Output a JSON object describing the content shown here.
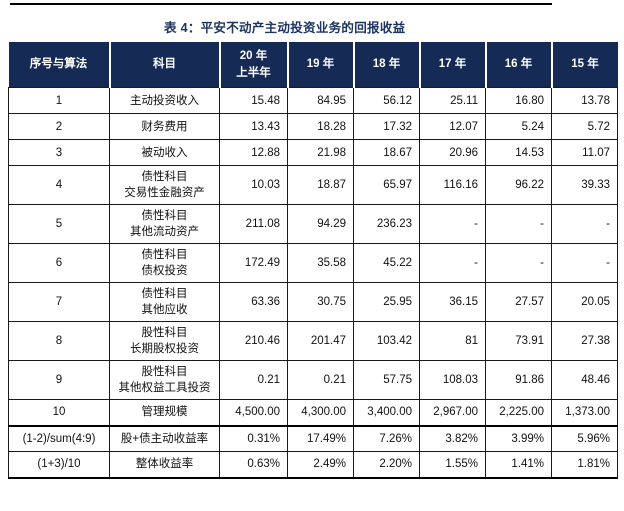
{
  "title": {
    "text": "表 4：平安不动产主动投资业务的回报收益",
    "color": "#1e3560"
  },
  "divider": {
    "color": "#000000"
  },
  "table": {
    "header_bg": "#152a54",
    "header_text_color": "#ffffff",
    "border_color": "#1a1a1a",
    "columns": [
      {
        "lines": [
          "序号与算法"
        ]
      },
      {
        "lines": [
          "科目"
        ]
      },
      {
        "lines": [
          "20 年",
          "上半年"
        ]
      },
      {
        "lines": [
          "19 年"
        ]
      },
      {
        "lines": [
          "18 年"
        ]
      },
      {
        "lines": [
          "17 年"
        ]
      },
      {
        "lines": [
          "16 年"
        ]
      },
      {
        "lines": [
          "15 年"
        ]
      }
    ],
    "rows": [
      {
        "id": "1",
        "subject_lines": [
          "主动投资收入"
        ],
        "values": [
          "15.48",
          "84.95",
          "56.12",
          "25.11",
          "16.80",
          "13.78"
        ]
      },
      {
        "id": "2",
        "subject_lines": [
          "财务费用"
        ],
        "values": [
          "13.43",
          "18.28",
          "17.32",
          "12.07",
          "5.24",
          "5.72"
        ]
      },
      {
        "id": "3",
        "subject_lines": [
          "被动收入"
        ],
        "values": [
          "12.88",
          "21.98",
          "18.67",
          "20.96",
          "14.53",
          "11.07"
        ]
      },
      {
        "id": "4",
        "subject_lines": [
          "债性科目",
          "交易性金融资产"
        ],
        "values": [
          "10.03",
          "18.87",
          "65.97",
          "116.16",
          "96.22",
          "39.33"
        ]
      },
      {
        "id": "5",
        "subject_lines": [
          "债性科目",
          "其他流动资产"
        ],
        "values": [
          "211.08",
          "94.29",
          "236.23",
          "-",
          "-",
          "-"
        ]
      },
      {
        "id": "6",
        "subject_lines": [
          "债性科目",
          "债权投资"
        ],
        "values": [
          "172.49",
          "35.58",
          "45.22",
          "-",
          "-",
          "-"
        ]
      },
      {
        "id": "7",
        "subject_lines": [
          "债性科目",
          "其他应收"
        ],
        "values": [
          "63.36",
          "30.75",
          "25.95",
          "36.15",
          "27.57",
          "20.05"
        ]
      },
      {
        "id": "8",
        "subject_lines": [
          "股性科目",
          "长期股权投资"
        ],
        "values": [
          "210.46",
          "201.47",
          "103.42",
          "81",
          "73.91",
          "27.38"
        ]
      },
      {
        "id": "9",
        "subject_lines": [
          "股性科目",
          "其他权益工具投资"
        ],
        "values": [
          "0.21",
          "0.21",
          "57.75",
          "108.03",
          "91.86",
          "48.46"
        ]
      },
      {
        "id": "10",
        "subject_lines": [
          "管理规模"
        ],
        "values": [
          "4,500.00",
          "4,300.00",
          "3,400.00",
          "2,967.00",
          "2,225.00",
          "1,373.00"
        ]
      },
      {
        "id": "(1-2)/sum(4:9)",
        "subject_lines": [
          "股+债主动收益率"
        ],
        "values": [
          "0.31%",
          "17.49%",
          "7.26%",
          "3.82%",
          "3.99%",
          "5.96%"
        ],
        "thick_top": true
      },
      {
        "id": "(1+3)/10",
        "subject_lines": [
          "整体收益率"
        ],
        "values": [
          "0.63%",
          "2.49%",
          "2.20%",
          "1.55%",
          "1.41%",
          "1.81%"
        ]
      }
    ]
  }
}
